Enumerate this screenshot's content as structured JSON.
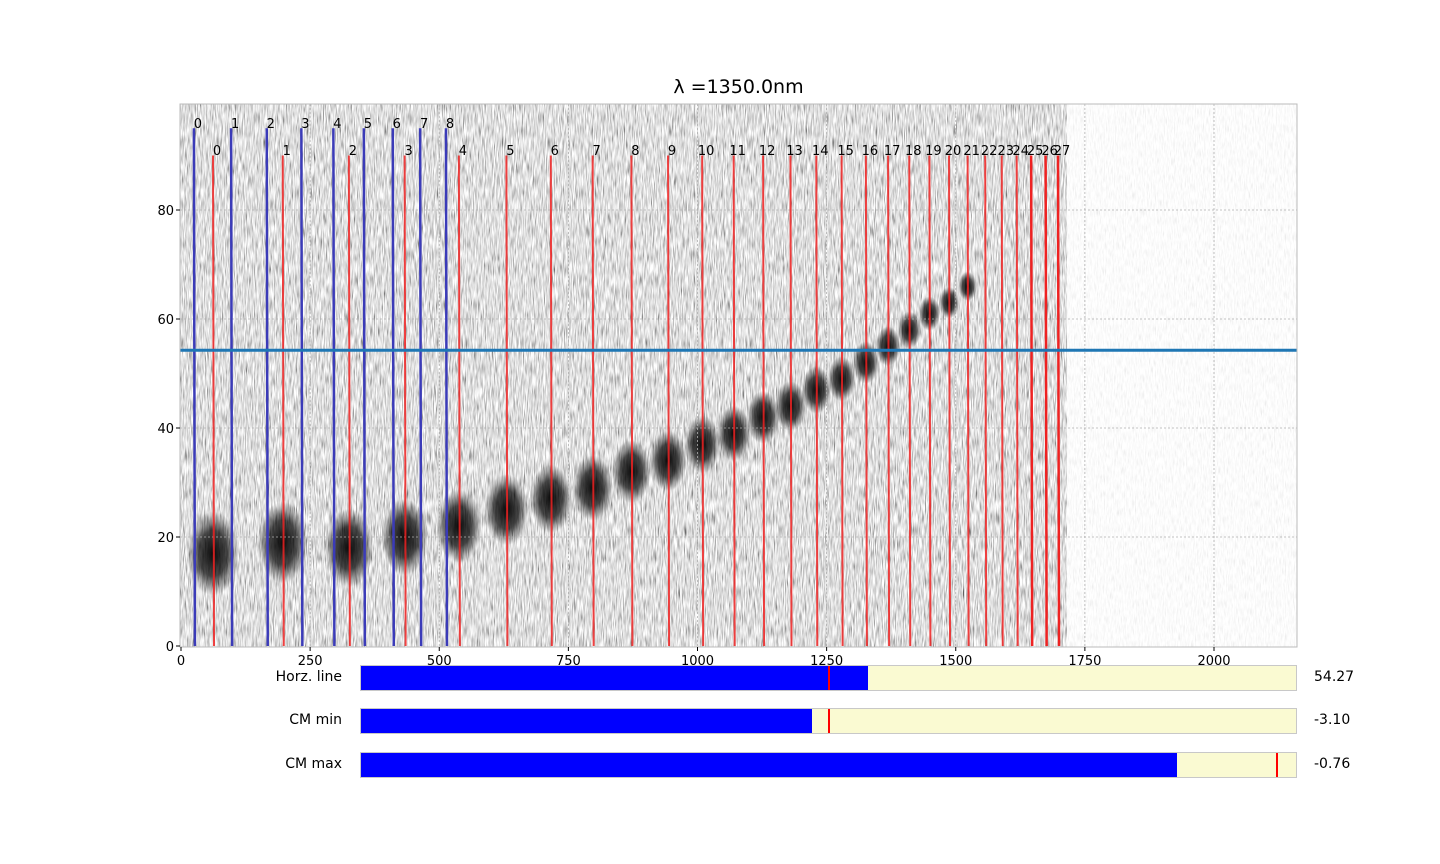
{
  "figure": {
    "title": "λ =1350.0nm",
    "colors": {
      "blue_line": "#1f77b4",
      "blue_trace": "#3b3bb8",
      "red_trace": "#ee2222",
      "slider_fill": "#0000ff",
      "slider_bg": "#fafad2",
      "slider_marker": "#ff0000"
    }
  },
  "chart_data": {
    "type": "heatmap",
    "title": "λ =1350.0nm",
    "xlabel": "",
    "ylabel": "",
    "xlim": [
      0,
      2150
    ],
    "ylim": [
      0,
      99
    ],
    "x_ticks": [
      0,
      250,
      500,
      750,
      1000,
      1250,
      1500,
      1750,
      2000
    ],
    "y_ticks": [
      0,
      20,
      40,
      60,
      80
    ],
    "grid": true,
    "horizontal_line_y": 54.27,
    "blue_orders": {
      "labels": [
        "0",
        "1",
        "2",
        "3",
        "4",
        "5",
        "6",
        "7",
        "8"
      ],
      "x": [
        25,
        97,
        166,
        233,
        295,
        354,
        410,
        463,
        513
      ],
      "top_y": 95
    },
    "red_orders": {
      "labels": [
        "0",
        "1",
        "2",
        "3",
        "4",
        "5",
        "6",
        "7",
        "8",
        "9",
        "10",
        "11",
        "12",
        "13",
        "14",
        "15",
        "16",
        "17",
        "18",
        "19",
        "20",
        "21",
        "22",
        "23",
        "24",
        "25",
        "26",
        "27"
      ],
      "x": [
        62,
        197,
        325,
        433,
        538,
        630,
        716,
        797,
        872,
        943,
        1009,
        1070,
        1127,
        1180,
        1230,
        1279,
        1326,
        1369,
        1410,
        1449,
        1487,
        1523,
        1557,
        1589,
        1618,
        1646,
        1674,
        1698
      ],
      "top_y": 90,
      "blobs_y": [
        17,
        19,
        18,
        20,
        22,
        25,
        27,
        29,
        32,
        34,
        37,
        39,
        42,
        44,
        47,
        49,
        52,
        55,
        58,
        61,
        63,
        66
      ]
    }
  },
  "sliders": [
    {
      "label": "Horz. line",
      "value_text": "54.27",
      "fill": 0.5425,
      "marker": 0.5
    },
    {
      "label": "CM min",
      "value_text": "-3.10",
      "fill": 0.4825,
      "marker": 0.5
    },
    {
      "label": "CM max",
      "value_text": "-0.76",
      "fill": 0.873,
      "marker": 0.9795
    }
  ]
}
